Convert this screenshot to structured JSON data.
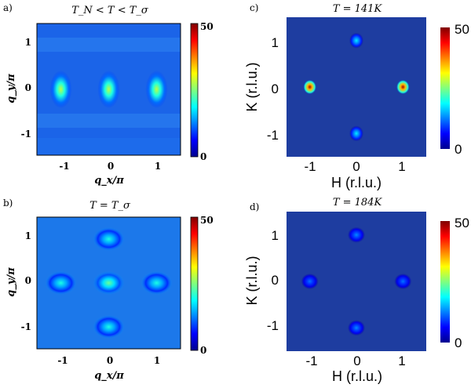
{
  "chart_data": [
    {
      "panel": "a)",
      "type": "heatmap",
      "title": "T_N < T < T_σ",
      "xlabel": "q_x/π",
      "ylabel": "q_y/π",
      "xticks": [
        "-1",
        "0",
        "1"
      ],
      "yticks": [
        "1",
        "0",
        "-1"
      ],
      "xlim": [
        -1.5,
        1.5
      ],
      "ylim": [
        -1.5,
        1.5
      ],
      "colorbar": {
        "min": 0,
        "max": 50,
        "labels": [
          "50",
          "0"
        ]
      },
      "peaks": [
        {
          "x": -1,
          "y": 0,
          "intensity": 28
        },
        {
          "x": 0,
          "y": 0,
          "intensity": 28
        },
        {
          "x": 1,
          "y": 0,
          "intensity": 28
        }
      ],
      "background": 8
    },
    {
      "panel": "b)",
      "type": "heatmap",
      "title": "T = T_σ",
      "xlabel": "q_x/π",
      "ylabel": "q_y/π",
      "xticks": [
        "-1",
        "0",
        "1"
      ],
      "yticks": [
        "1",
        "0",
        "-1"
      ],
      "xlim": [
        -1.5,
        1.5
      ],
      "ylim": [
        -1.5,
        1.5
      ],
      "colorbar": {
        "min": 0,
        "max": 50,
        "labels": [
          "50",
          "0"
        ]
      },
      "peaks": [
        {
          "x": 0,
          "y": 0,
          "intensity": 24
        },
        {
          "x": -1,
          "y": 0,
          "intensity": 20
        },
        {
          "x": 1,
          "y": 0,
          "intensity": 20
        },
        {
          "x": 0,
          "y": 1,
          "intensity": 20
        },
        {
          "x": 0,
          "y": -1,
          "intensity": 20
        }
      ],
      "background": 12
    },
    {
      "panel": "c)",
      "type": "heatmap",
      "title": "T = 141K",
      "xlabel": "H (r.l.u.)",
      "ylabel": "K (r.l.u.)",
      "xticks": [
        "-1",
        "0",
        "1"
      ],
      "yticks": [
        "1",
        "0",
        "-1"
      ],
      "xlim": [
        -1.5,
        1.5
      ],
      "ylim": [
        -1.5,
        1.5
      ],
      "colorbar": {
        "min": 0,
        "max": 50,
        "labels": [
          "50",
          "0"
        ]
      },
      "peaks": [
        {
          "x": -1,
          "y": 0,
          "intensity": 48
        },
        {
          "x": 1,
          "y": 0,
          "intensity": 48
        },
        {
          "x": 0,
          "y": 1,
          "intensity": 18
        },
        {
          "x": 0,
          "y": -1,
          "intensity": 18
        }
      ],
      "background": 0
    },
    {
      "panel": "d)",
      "type": "heatmap",
      "title": "T = 184K",
      "xlabel": "H (r.l.u.)",
      "ylabel": "K (r.l.u.)",
      "xticks": [
        "-1",
        "0",
        "1"
      ],
      "yticks": [
        "1",
        "0",
        "-1"
      ],
      "xlim": [
        -1.5,
        1.5
      ],
      "ylim": [
        -1.5,
        1.5
      ],
      "colorbar": {
        "min": 0,
        "max": 50,
        "labels": [
          "50",
          "0"
        ]
      },
      "peaks": [
        {
          "x": -1,
          "y": 0,
          "intensity": 12
        },
        {
          "x": 1,
          "y": 0,
          "intensity": 12
        },
        {
          "x": 0,
          "y": 1,
          "intensity": 13
        },
        {
          "x": 0,
          "y": -1,
          "intensity": 13
        }
      ],
      "background": 0
    }
  ],
  "colors": {
    "jet_dark_blue": "#00008f",
    "panel_ab_base": "#1a6fe6",
    "panel_cd_base": "#1e3da0",
    "frame": "#000000"
  }
}
